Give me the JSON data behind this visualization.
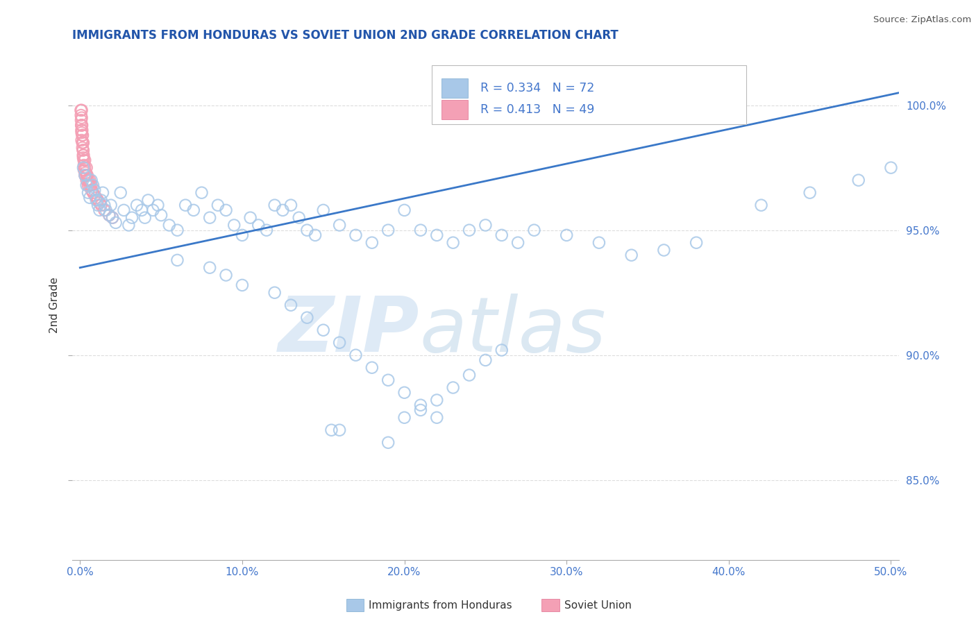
{
  "title": "IMMIGRANTS FROM HONDURAS VS SOVIET UNION 2ND GRADE CORRELATION CHART",
  "source": "Source: ZipAtlas.com",
  "ylabel": "2nd Grade",
  "legend_label1": "Immigrants from Honduras",
  "legend_label2": "Soviet Union",
  "R1": 0.334,
  "N1": 72,
  "R2": 0.413,
  "N2": 49,
  "blue_color": "#A8C8E8",
  "blue_edge": "#7AAAD0",
  "pink_color": "#F4A0B5",
  "pink_edge": "#E07090",
  "line_color": "#3A78C8",
  "title_color": "#2255AA",
  "tick_color": "#4477CC",
  "axis_color": "#AAAAAA",
  "grid_color": "#DDDDDD",
  "xlim": [
    -0.005,
    0.505
  ],
  "ylim": [
    0.818,
    1.022
  ],
  "xtick_positions": [
    0.0,
    0.1,
    0.2,
    0.3,
    0.4,
    0.5
  ],
  "xtick_labels": [
    "0.0%",
    "10.0%",
    "20.0%",
    "30.0%",
    "40.0%",
    "50.0%"
  ],
  "ytick_positions": [
    0.85,
    0.9,
    0.95,
    1.0
  ],
  "ytick_labels": [
    "85.0%",
    "90.0%",
    "95.0%",
    "100.0%"
  ],
  "line_x0": 0.0,
  "line_x1": 0.505,
  "line_y0": 0.935,
  "line_y1": 1.005,
  "hon_x": [
    0.002,
    0.003,
    0.004,
    0.005,
    0.006,
    0.007,
    0.008,
    0.009,
    0.01,
    0.011,
    0.012,
    0.013,
    0.014,
    0.015,
    0.016,
    0.018,
    0.019,
    0.02,
    0.022,
    0.025,
    0.027,
    0.03,
    0.032,
    0.035,
    0.038,
    0.04,
    0.042,
    0.045,
    0.048,
    0.05,
    0.055,
    0.06,
    0.065,
    0.07,
    0.075,
    0.08,
    0.085,
    0.09,
    0.095,
    0.1,
    0.105,
    0.11,
    0.115,
    0.12,
    0.125,
    0.13,
    0.135,
    0.14,
    0.145,
    0.15,
    0.16,
    0.17,
    0.18,
    0.19,
    0.2,
    0.21,
    0.22,
    0.23,
    0.24,
    0.25,
    0.26,
    0.27,
    0.28,
    0.3,
    0.32,
    0.34,
    0.36,
    0.38,
    0.42,
    0.45,
    0.48,
    0.5
  ],
  "hon_y": [
    0.975,
    0.972,
    0.968,
    0.965,
    0.963,
    0.97,
    0.968,
    0.966,
    0.962,
    0.96,
    0.958,
    0.962,
    0.965,
    0.96,
    0.958,
    0.956,
    0.96,
    0.955,
    0.953,
    0.965,
    0.958,
    0.952,
    0.955,
    0.96,
    0.958,
    0.955,
    0.962,
    0.958,
    0.96,
    0.956,
    0.952,
    0.95,
    0.96,
    0.958,
    0.965,
    0.955,
    0.96,
    0.958,
    0.952,
    0.948,
    0.955,
    0.952,
    0.95,
    0.96,
    0.958,
    0.96,
    0.955,
    0.95,
    0.948,
    0.958,
    0.952,
    0.948,
    0.945,
    0.95,
    0.958,
    0.95,
    0.948,
    0.945,
    0.95,
    0.952,
    0.948,
    0.945,
    0.95,
    0.948,
    0.945,
    0.94,
    0.942,
    0.945,
    0.96,
    0.965,
    0.97,
    0.975
  ],
  "hon_y_outliers": [
    0.938,
    0.935,
    0.932,
    0.928,
    0.925,
    0.92,
    0.915,
    0.91,
    0.905,
    0.9,
    0.895,
    0.89,
    0.885,
    0.88,
    0.875,
    0.87,
    0.865,
    0.875,
    0.878,
    0.882,
    0.887,
    0.892,
    0.898,
    0.902,
    0.87
  ],
  "hon_x_outliers": [
    0.06,
    0.08,
    0.09,
    0.1,
    0.12,
    0.13,
    0.14,
    0.15,
    0.16,
    0.17,
    0.18,
    0.19,
    0.2,
    0.21,
    0.22,
    0.16,
    0.19,
    0.2,
    0.21,
    0.22,
    0.23,
    0.24,
    0.25,
    0.26,
    0.155
  ],
  "sov_x": [
    0.0005,
    0.0006,
    0.0007,
    0.0008,
    0.0009,
    0.001,
    0.001,
    0.001,
    0.001,
    0.001,
    0.0012,
    0.0013,
    0.0014,
    0.0015,
    0.0015,
    0.0016,
    0.0017,
    0.0018,
    0.0019,
    0.002,
    0.002,
    0.002,
    0.0022,
    0.0023,
    0.0024,
    0.0025,
    0.003,
    0.003,
    0.003,
    0.0035,
    0.004,
    0.004,
    0.004,
    0.0045,
    0.005,
    0.005,
    0.006,
    0.006,
    0.007,
    0.007,
    0.008,
    0.009,
    0.01,
    0.011,
    0.012,
    0.013,
    0.015,
    0.018,
    0.02
  ],
  "sov_y": [
    0.998,
    0.996,
    0.994,
    0.992,
    0.99,
    0.998,
    0.995,
    0.992,
    0.989,
    0.986,
    0.992,
    0.99,
    0.988,
    0.985,
    0.983,
    0.988,
    0.985,
    0.982,
    0.98,
    0.985,
    0.982,
    0.979,
    0.98,
    0.978,
    0.976,
    0.974,
    0.978,
    0.975,
    0.972,
    0.973,
    0.975,
    0.972,
    0.97,
    0.972,
    0.97,
    0.968,
    0.97,
    0.968,
    0.968,
    0.966,
    0.965,
    0.964,
    0.963,
    0.962,
    0.961,
    0.96,
    0.958,
    0.956,
    0.955
  ]
}
